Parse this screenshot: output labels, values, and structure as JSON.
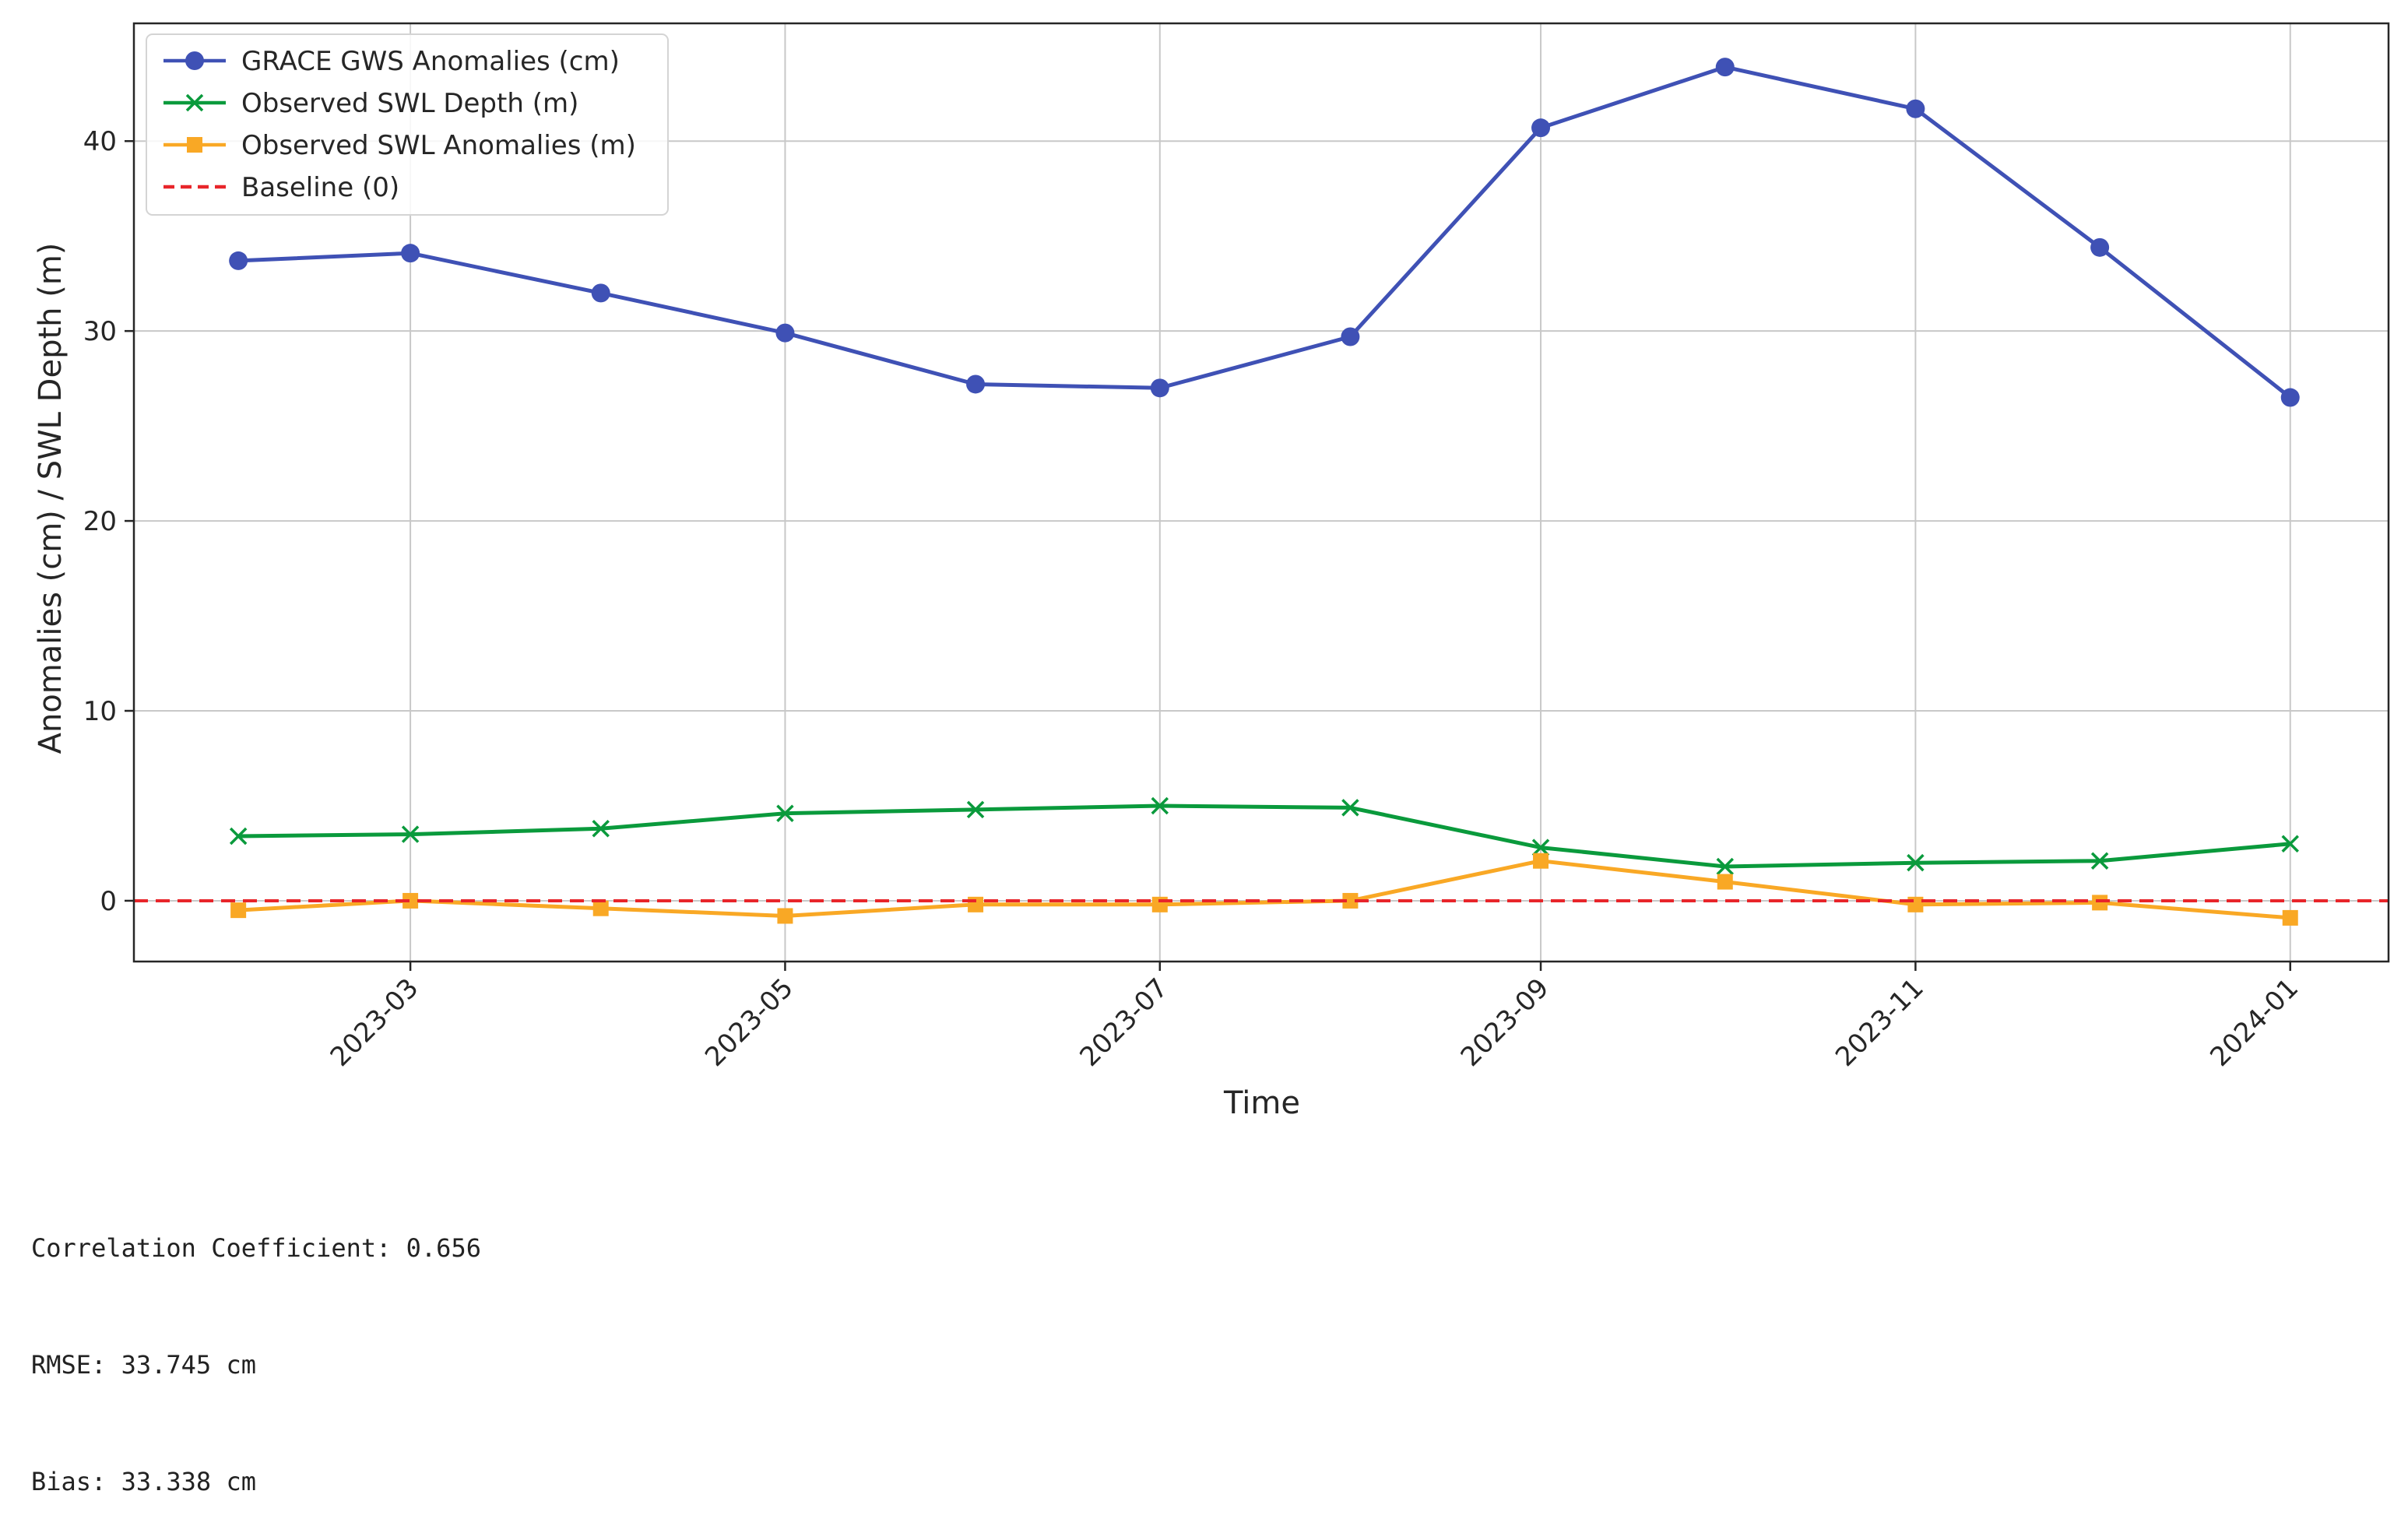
{
  "chart_data": {
    "type": "line",
    "xlabel": "Time",
    "ylabel": "Anomalies (cm) / SWL Depth (m)",
    "x": [
      "2023-02-01",
      "2023-03-01",
      "2023-04-01",
      "2023-05-01",
      "2023-06-01",
      "2023-07-01",
      "2023-08-01",
      "2023-09-01",
      "2023-10-01",
      "2023-11-01",
      "2023-12-01",
      "2024-01-01"
    ],
    "x_ticks": [
      "2023-03",
      "2023-05",
      "2023-07",
      "2023-09",
      "2023-11",
      "2024-01"
    ],
    "xlim": [
      "2023-01-15",
      "2024-01-17"
    ],
    "ylim": [
      -3.2,
      46.2
    ],
    "y_ticks": [
      0,
      10,
      20,
      30,
      40
    ],
    "grid": true,
    "legend_position": "top-left",
    "series": [
      {
        "name": "GRACE GWS Anomalies (cm)",
        "color": "#3f51b5",
        "marker": "circle",
        "linestyle": "solid",
        "values": [
          33.7,
          34.1,
          32.0,
          29.9,
          27.2,
          27.0,
          29.7,
          40.7,
          43.9,
          41.7,
          34.4,
          26.5
        ]
      },
      {
        "name": "Observed SWL Depth (m)",
        "color": "#0a9a3c",
        "marker": "x",
        "linestyle": "solid",
        "values": [
          3.4,
          3.5,
          3.8,
          4.6,
          4.8,
          5.0,
          4.9,
          2.8,
          1.8,
          2.0,
          2.1,
          3.0
        ]
      },
      {
        "name": "Observed SWL Anomalies (m)",
        "color": "#f9a825",
        "marker": "square",
        "linestyle": "solid",
        "values": [
          -0.5,
          0.0,
          -0.4,
          -0.8,
          -0.2,
          -0.2,
          0.0,
          2.1,
          1.0,
          -0.2,
          -0.1,
          -0.9
        ]
      },
      {
        "name": "Baseline (0)",
        "color": "#e8252a",
        "marker": "none",
        "linestyle": "dashed",
        "values": [
          0,
          0,
          0,
          0,
          0,
          0,
          0,
          0,
          0,
          0,
          0,
          0
        ]
      }
    ]
  },
  "stats": {
    "line1": "Correlation Coefficient: 0.656",
    "line2": "RMSE: 33.745 cm",
    "line3": "Bias: 33.338 cm"
  }
}
